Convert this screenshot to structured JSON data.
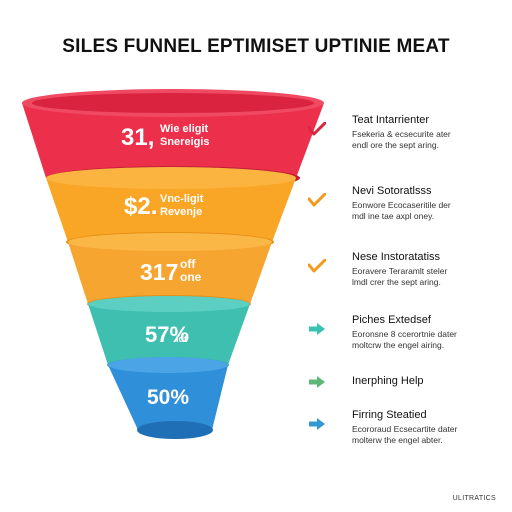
{
  "title": "SILES FUNNEL EPTIMISET UPTINIE MEAT",
  "colors": {
    "red": "#ec2f4b",
    "orange": "#f9a526",
    "amber": "#f7a531",
    "teal": "#3fbfb0",
    "blue": "#2f8fd8",
    "arrow_red": "#d7263d",
    "arrow_orange": "#f39a1e",
    "arrow_teal": "#38c3b2",
    "arrow_green": "#5fb878",
    "arrow_blue": "#3397d6"
  },
  "stages": [
    {
      "big": "31,",
      "small1": "Wie eligit",
      "small2": "Snereigis"
    },
    {
      "big": "$2.",
      "small1": "Vnc-ligit",
      "small2": "Revenje"
    },
    {
      "big": "317",
      "small1": "off",
      "small2": "one"
    },
    {
      "big": "57%",
      "small1": "",
      "small2": "ldt"
    },
    {
      "big": "50%",
      "small1": "",
      "small2": ""
    }
  ],
  "items": [
    {
      "icon": "check-red-icon",
      "title": "Teat Intarrienter",
      "desc": "Fsekeria & ecsecurite ater\nendl ore the sept aring."
    },
    {
      "icon": "check-orange-icon",
      "title": "Nevi Sotoratlsss",
      "desc": "Eonwore Ecocaseritile der\nmdl ine tae axpl oney."
    },
    {
      "icon": "check-orange-icon",
      "title": "Nese Instoratatiss",
      "desc": "Eoravere Teraramlt steler\nlmdl crer the sept aring."
    },
    {
      "icon": "arrow-right-teal-icon",
      "title": "Piches Extedsef",
      "desc": "Eoronsne 8 ccerortnie dater\nmoltcrw the engel airing."
    },
    {
      "icon": "arrow-right-green-icon",
      "title": "Inerphing Help",
      "desc": ""
    },
    {
      "icon": "arrow-right-blue-icon",
      "title": "Firring Steatied",
      "desc": "Ecororaud Ecsecartite dater\nmolterw the engel abter."
    }
  ],
  "footer": "ULITRATICS"
}
